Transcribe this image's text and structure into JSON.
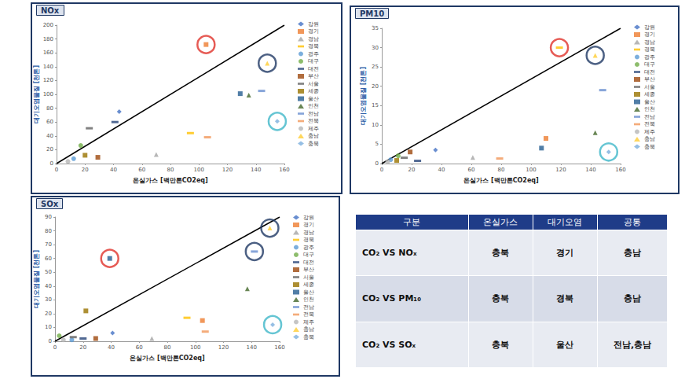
{
  "chart_data": [
    {
      "type": "scatter",
      "title": "NOx",
      "x_label": "온실가스 [백만톤CO2eq]",
      "y_label": "대기오염물질 [천톤]",
      "xlim": [
        0,
        160
      ],
      "xticks": [
        0,
        20,
        40,
        60,
        80,
        100,
        120,
        140,
        160
      ],
      "ylim": [
        0,
        200
      ],
      "yticks": [
        0,
        20,
        40,
        60,
        80,
        100,
        120,
        140,
        160,
        180,
        200
      ],
      "grid": false,
      "legend": "right",
      "series": [
        {
          "name": "강원",
          "color": "#4472c4",
          "marker": "diamond",
          "x": [
            44
          ],
          "values": [
            75
          ]
        },
        {
          "name": "경기",
          "color": "#ed7d31",
          "marker": "square",
          "x": [
            105
          ],
          "values": [
            172
          ]
        },
        {
          "name": "경남",
          "color": "#a5a5a5",
          "marker": "triangle",
          "x": [
            70
          ],
          "values": [
            13
          ]
        },
        {
          "name": "경북",
          "color": "#ffc000",
          "marker": "dash",
          "x": [
            94
          ],
          "values": [
            44
          ]
        },
        {
          "name": "광주",
          "color": "#5b9bd5",
          "marker": "circle",
          "x": [
            12
          ],
          "values": [
            7
          ]
        },
        {
          "name": "대구",
          "color": "#70ad47",
          "marker": "circle",
          "x": [
            17
          ],
          "values": [
            26
          ]
        },
        {
          "name": "대전",
          "color": "#264478",
          "marker": "dash",
          "x": [
            41
          ],
          "values": [
            60
          ]
        },
        {
          "name": "부산",
          "color": "#9e480e",
          "marker": "square",
          "x": [
            29
          ],
          "values": [
            9
          ]
        },
        {
          "name": "서울",
          "color": "#636363",
          "marker": "dash",
          "x": [
            23
          ],
          "values": [
            51
          ]
        },
        {
          "name": "세종",
          "color": "#997300",
          "marker": "square",
          "x": [
            20
          ],
          "values": [
            12
          ]
        },
        {
          "name": "울산",
          "color": "#255e91",
          "marker": "square",
          "x": [
            129
          ],
          "values": [
            101
          ]
        },
        {
          "name": "인천",
          "color": "#43682b",
          "marker": "triangle",
          "x": [
            135
          ],
          "values": [
            99
          ]
        },
        {
          "name": "전남",
          "color": "#698ed0",
          "marker": "dash",
          "x": [
            144
          ],
          "values": [
            105
          ]
        },
        {
          "name": "전북",
          "color": "#f1975a",
          "marker": "dash",
          "x": [
            106
          ],
          "values": [
            38
          ]
        },
        {
          "name": "제주",
          "color": "#b7b7b7",
          "marker": "circle",
          "x": [
            8
          ],
          "values": [
            3
          ]
        },
        {
          "name": "충남",
          "color": "#ffcd33",
          "marker": "triangle",
          "x": [
            148
          ],
          "values": [
            145
          ]
        },
        {
          "name": "충북",
          "color": "#7cafdd",
          "marker": "diamond",
          "x": [
            155
          ],
          "values": [
            61
          ]
        }
      ]
    },
    {
      "type": "scatter",
      "title": "PM10",
      "x_label": "온실가스 [백만톤CO2eq]",
      "y_label": "대기오염물질 [천톤]",
      "xlim": [
        0,
        160
      ],
      "xticks": [
        0,
        20,
        40,
        60,
        80,
        100,
        120,
        140,
        160
      ],
      "ylim": [
        0,
        35
      ],
      "yticks": [
        0,
        5,
        10,
        15,
        20,
        25,
        30,
        35
      ],
      "grid": false,
      "legend": "right",
      "series": [
        {
          "name": "강원",
          "color": "#4472c4",
          "marker": "diamond",
          "x": [
            36
          ],
          "values": [
            3.5
          ]
        },
        {
          "name": "경기",
          "color": "#ed7d31",
          "marker": "square",
          "x": [
            110
          ],
          "values": [
            6.5
          ]
        },
        {
          "name": "경남",
          "color": "#a5a5a5",
          "marker": "triangle",
          "x": [
            61
          ],
          "values": [
            1.6
          ]
        },
        {
          "name": "경북",
          "color": "#ffc000",
          "marker": "dash",
          "x": [
            119
          ],
          "values": [
            30
          ]
        },
        {
          "name": "광주",
          "color": "#5b9bd5",
          "marker": "circle",
          "x": [
            6
          ],
          "values": [
            1
          ]
        },
        {
          "name": "대구",
          "color": "#70ad47",
          "marker": "circle",
          "x": [
            11
          ],
          "values": [
            2
          ]
        },
        {
          "name": "대전",
          "color": "#264478",
          "marker": "dash",
          "x": [
            24
          ],
          "values": [
            0.7
          ]
        },
        {
          "name": "부산",
          "color": "#9e480e",
          "marker": "square",
          "x": [
            19
          ],
          "values": [
            3
          ]
        },
        {
          "name": "서울",
          "color": "#636363",
          "marker": "dash",
          "x": [
            15
          ],
          "values": [
            1.5
          ]
        },
        {
          "name": "세종",
          "color": "#997300",
          "marker": "square",
          "x": [
            10
          ],
          "values": [
            0.8
          ]
        },
        {
          "name": "울산",
          "color": "#255e91",
          "marker": "square",
          "x": [
            107
          ],
          "values": [
            4
          ]
        },
        {
          "name": "인천",
          "color": "#43682b",
          "marker": "triangle",
          "x": [
            143
          ],
          "values": [
            8
          ]
        },
        {
          "name": "전남",
          "color": "#698ed0",
          "marker": "dash",
          "x": [
            148
          ],
          "values": [
            19
          ]
        },
        {
          "name": "전북",
          "color": "#f1975a",
          "marker": "dash",
          "x": [
            79
          ],
          "values": [
            1.3
          ]
        },
        {
          "name": "제주",
          "color": "#b7b7b7",
          "marker": "circle",
          "x": [
            4
          ],
          "values": [
            0.5
          ]
        },
        {
          "name": "충남",
          "color": "#ffcd33",
          "marker": "triangle",
          "x": [
            143
          ],
          "values": [
            28
          ]
        },
        {
          "name": "충북",
          "color": "#7cafdd",
          "marker": "diamond",
          "x": [
            152
          ],
          "values": [
            3
          ]
        }
      ]
    },
    {
      "type": "scatter",
      "title": "SOx",
      "x_label": "온실가스 [백만톤CO2eq]",
      "y_label": "대기오염물질 [천톤]",
      "xlim": [
        0,
        160
      ],
      "xticks": [
        0,
        20,
        40,
        60,
        80,
        100,
        120,
        140,
        160
      ],
      "ylim": [
        0,
        90
      ],
      "yticks": [
        0,
        10,
        20,
        30,
        40,
        50,
        60,
        70,
        80,
        90
      ],
      "grid": false,
      "legend": "right",
      "series": [
        {
          "name": "강원",
          "color": "#4472c4",
          "marker": "diamond",
          "x": [
            41
          ],
          "values": [
            6
          ]
        },
        {
          "name": "경기",
          "color": "#ed7d31",
          "marker": "square",
          "x": [
            105
          ],
          "values": [
            15
          ]
        },
        {
          "name": "경남",
          "color": "#a5a5a5",
          "marker": "triangle",
          "x": [
            69
          ],
          "values": [
            2
          ]
        },
        {
          "name": "경북",
          "color": "#ffc000",
          "marker": "dash",
          "x": [
            94
          ],
          "values": [
            17
          ]
        },
        {
          "name": "광주",
          "color": "#5b9bd5",
          "marker": "circle",
          "x": [
            12
          ],
          "values": [
            1
          ]
        },
        {
          "name": "대구",
          "color": "#70ad47",
          "marker": "circle",
          "x": [
            3
          ],
          "values": [
            4
          ]
        },
        {
          "name": "대전",
          "color": "#264478",
          "marker": "dash",
          "x": [
            20
          ],
          "values": [
            2
          ]
        },
        {
          "name": "부산",
          "color": "#9e480e",
          "marker": "square",
          "x": [
            29
          ],
          "values": [
            2
          ]
        },
        {
          "name": "서울",
          "color": "#636363",
          "marker": "dash",
          "x": [
            13
          ],
          "values": [
            3
          ]
        },
        {
          "name": "세종",
          "color": "#997300",
          "marker": "square",
          "x": [
            22
          ],
          "values": [
            22
          ]
        },
        {
          "name": "울산",
          "color": "#255e91",
          "marker": "square",
          "x": [
            39
          ],
          "values": [
            60
          ]
        },
        {
          "name": "인천",
          "color": "#43682b",
          "marker": "triangle",
          "x": [
            137
          ],
          "values": [
            38
          ]
        },
        {
          "name": "전남",
          "color": "#698ed0",
          "marker": "dash",
          "x": [
            142
          ],
          "values": [
            65
          ]
        },
        {
          "name": "전북",
          "color": "#f1975a",
          "marker": "dash",
          "x": [
            107
          ],
          "values": [
            7
          ]
        },
        {
          "name": "제주",
          "color": "#b7b7b7",
          "marker": "circle",
          "x": [
            6
          ],
          "values": [
            1
          ]
        },
        {
          "name": "충남",
          "color": "#ffcd33",
          "marker": "triangle",
          "x": [
            153
          ],
          "values": [
            82
          ]
        },
        {
          "name": "충북",
          "color": "#7cafdd",
          "marker": "diamond",
          "x": [
            155
          ],
          "values": [
            12
          ]
        }
      ]
    }
  ],
  "table": {
    "header": [
      "구분",
      "온실가스",
      "대기오염",
      "공통"
    ],
    "rows": [
      [
        "CO₂ VS NOₓ",
        "충북",
        "경기",
        "충남"
      ],
      [
        "CO₂ VS PM₁₀",
        "충북",
        "경북",
        "충남"
      ],
      [
        "CO₂ VS SOₓ",
        "충북",
        "울산",
        "전남,충남"
      ]
    ]
  }
}
